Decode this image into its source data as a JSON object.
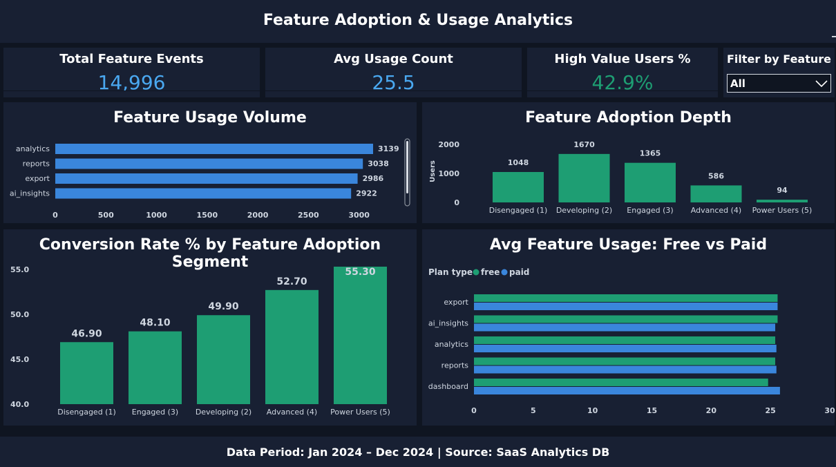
{
  "header": {
    "title": "Feature Adoption & Usage Analytics"
  },
  "kpis": [
    {
      "label": "Total Feature Events",
      "value": "14,996",
      "color": "#4aa8f0"
    },
    {
      "label": "Avg Usage Count",
      "value": "25.5",
      "color": "#4aa8f0"
    },
    {
      "label": "High Value Users %",
      "value": "42.9%",
      "color": "#1e9e73"
    }
  ],
  "filter": {
    "label": "Filter by Feature",
    "selected": "All",
    "icon": "chevron-down-icon"
  },
  "colors": {
    "bar_blue": "#3a86dc",
    "bar_green": "#1e9e73",
    "panel": "#182033",
    "background": "#0f1521"
  },
  "chart_data": [
    {
      "type": "bar",
      "orientation": "horizontal",
      "title": "Feature Usage Volume",
      "categories": [
        "analytics",
        "reports",
        "export",
        "ai_insights"
      ],
      "values": [
        3139,
        3038,
        2986,
        2922
      ],
      "x_ticks": [
        "0",
        "500",
        "1000",
        "1500",
        "2000",
        "2500",
        "3000"
      ],
      "xlim": [
        0,
        3139
      ],
      "color": "#3a86dc",
      "scrollbar": true
    },
    {
      "type": "bar",
      "title": "Feature Adoption Depth",
      "ylabel": "Users",
      "categories": [
        "Disengaged (1)",
        "Developing (2)",
        "Engaged (3)",
        "Advanced (4)",
        "Power Users (5)"
      ],
      "values": [
        1048,
        1670,
        1365,
        586,
        94
      ],
      "y_ticks": [
        "2000",
        "1000",
        "0"
      ],
      "ylim": [
        0,
        2000
      ],
      "color": "#1e9e73"
    },
    {
      "type": "bar",
      "title": "Conversion Rate % by Feature Adoption Segment",
      "categories": [
        "Disengaged (1)",
        "Engaged (3)",
        "Developing (2)",
        "Advanced (4)",
        "Power Users (5)"
      ],
      "values": [
        46.9,
        48.1,
        49.9,
        52.7,
        55.3
      ],
      "labels": [
        "46.90",
        "48.10",
        "49.90",
        "52.70",
        "55.30"
      ],
      "y_ticks": [
        "55.0",
        "50.0",
        "45.0",
        "40.0"
      ],
      "ylim": [
        40,
        55.3
      ],
      "color": "#1e9e73"
    },
    {
      "type": "bar",
      "orientation": "horizontal",
      "title": "Avg Feature Usage: Free vs Paid",
      "legend_title": "Plan type",
      "categories": [
        "export",
        "ai_insights",
        "analytics",
        "reports",
        "dashboard"
      ],
      "series": [
        {
          "name": "free",
          "values": [
            25.6,
            25.6,
            25.4,
            25.4,
            24.8
          ],
          "color": "#1e9e73"
        },
        {
          "name": "paid",
          "values": [
            25.6,
            25.4,
            25.5,
            25.5,
            25.8
          ],
          "color": "#3a86dc"
        }
      ],
      "x_ticks": [
        "0",
        "5",
        "10",
        "15",
        "20",
        "25",
        "30"
      ],
      "xlim": [
        0,
        30
      ]
    }
  ],
  "footer": {
    "text": "Data Period: Jan 2024 – Dec 2024 | Source: SaaS Analytics DB"
  }
}
